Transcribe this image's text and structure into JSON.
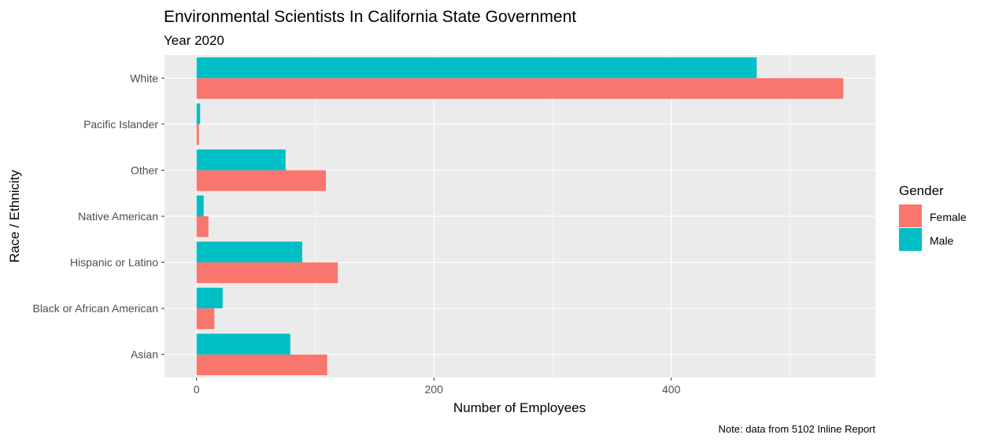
{
  "chart_data": {
    "type": "bar",
    "orientation": "horizontal",
    "title": "Environmental Scientists In California State Government",
    "subtitle": "Year 2020",
    "xlabel": "Number of Employees",
    "ylabel": "Race / Ethnicity",
    "caption": "Note: data from 5102 Inline Report",
    "categories": [
      "Asian",
      "Black or African American",
      "Hispanic or Latino",
      "Native American",
      "Other",
      "Pacific Islander",
      "White"
    ],
    "series": [
      {
        "name": "Female",
        "color": "#F8766D",
        "values": [
          110,
          15,
          119,
          10,
          109,
          2,
          545
        ]
      },
      {
        "name": "Male",
        "color": "#00BFC4",
        "values": [
          79,
          22,
          89,
          6,
          75,
          3,
          472
        ]
      }
    ],
    "xlim": [
      -27,
      572
    ],
    "xticks": [
      0,
      200,
      400
    ],
    "grid": true,
    "legend": {
      "title": "Gender",
      "position": "right",
      "items": [
        "Female",
        "Male"
      ]
    }
  }
}
